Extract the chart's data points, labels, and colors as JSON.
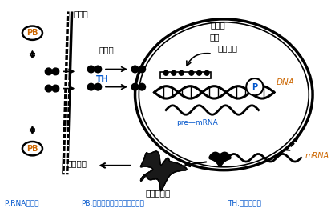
{
  "bg_color": "#ffffff",
  "label_cell_membrane": "细胞膜",
  "label_cytoplasm": "细胞质",
  "label_nucleus": "细胞核",
  "label_other_tf": "其它",
  "label_tf": "转录因子",
  "label_dna": "DNA",
  "label_pre_mrna": "pre—mRNA",
  "label_mrna": "mRNA",
  "label_bio_effect": "生物效应",
  "label_functional_protein": "功能蛋白质",
  "label_p": "P",
  "label_th": "TH",
  "label_pb": "PB",
  "legend_p": "P:RNA聚合酶",
  "legend_pb": "PB:甲状腺激素的血浆运输蛋白",
  "legend_th": "TH:甲状腺激素",
  "color_blue": "#0055cc",
  "color_orange": "#cc6600",
  "color_black": "#000000"
}
